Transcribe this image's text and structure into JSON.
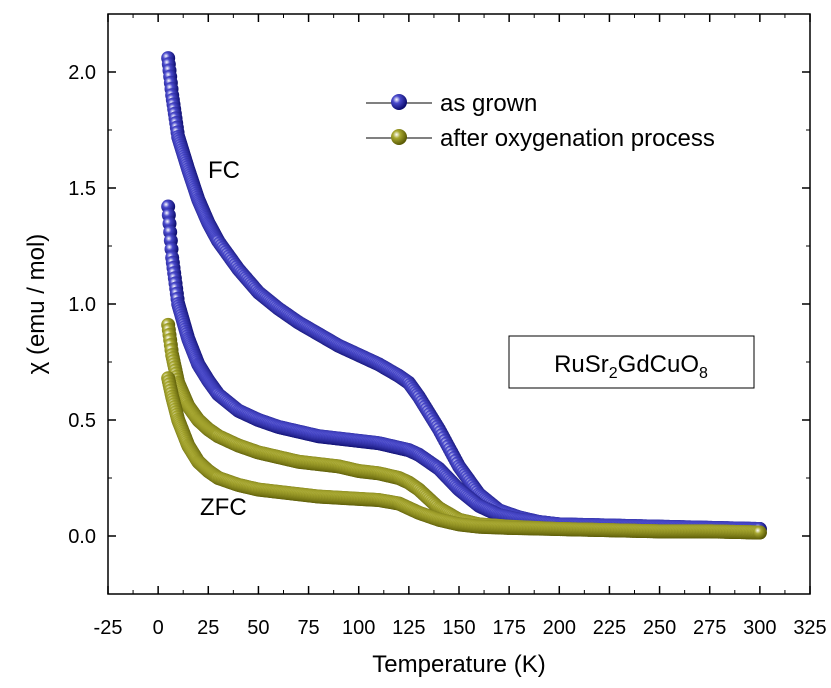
{
  "chart_data": {
    "type": "scatter",
    "title": "",
    "xlabel": "Temperature (K)",
    "ylabel": "χ (emu / mol)",
    "xlim": [
      -25,
      325
    ],
    "ylim": [
      -0.25,
      2.25
    ],
    "xticks": [
      "-25",
      "0",
      "25",
      "50",
      "75",
      "100",
      "125",
      "150",
      "175",
      "200",
      "225",
      "250",
      "275",
      "300",
      "325"
    ],
    "yticks": [
      "0.0",
      "0.5",
      "1.0",
      "1.5",
      "2.0"
    ],
    "legend_position": "top-right",
    "grid": false,
    "series": [
      {
        "name": "as grown",
        "color": "#1a1a9e",
        "curves": [
          {
            "label": "FC",
            "x": [
              5,
              7,
              10,
              15,
              20,
              25,
              30,
              40,
              50,
              60,
              70,
              80,
              90,
              100,
              110,
              120,
              125,
              130,
              140,
              150,
              160,
              170,
              180,
              190,
              200,
              225,
              250,
              275,
              300
            ],
            "y": [
              2.06,
              1.9,
              1.72,
              1.58,
              1.45,
              1.35,
              1.27,
              1.15,
              1.05,
              0.98,
              0.92,
              0.87,
              0.82,
              0.78,
              0.74,
              0.69,
              0.66,
              0.6,
              0.46,
              0.3,
              0.18,
              0.11,
              0.08,
              0.06,
              0.05,
              0.045,
              0.04,
              0.035,
              0.03
            ]
          },
          {
            "label": "ZFC",
            "x": [
              5,
              7,
              10,
              15,
              20,
              25,
              30,
              40,
              50,
              60,
              70,
              80,
              90,
              100,
              110,
              120,
              125,
              130,
              140,
              150,
              160,
              170,
              180,
              190,
              200,
              225,
              250,
              275,
              300
            ],
            "y": [
              1.42,
              1.2,
              1.0,
              0.85,
              0.74,
              0.67,
              0.61,
              0.54,
              0.5,
              0.47,
              0.45,
              0.43,
              0.42,
              0.41,
              0.4,
              0.38,
              0.37,
              0.35,
              0.29,
              0.2,
              0.13,
              0.09,
              0.07,
              0.06,
              0.05,
              0.045,
              0.04,
              0.035,
              0.03
            ]
          }
        ]
      },
      {
        "name": "after oxygenation process",
        "color": "#8a8a12",
        "curves": [
          {
            "label": "FC",
            "x": [
              5,
              7,
              10,
              15,
              20,
              25,
              30,
              40,
              50,
              60,
              70,
              80,
              90,
              100,
              110,
              120,
              125,
              130,
              140,
              150,
              160,
              175,
              200,
              225,
              250,
              275,
              300
            ],
            "y": [
              0.91,
              0.78,
              0.66,
              0.56,
              0.5,
              0.46,
              0.43,
              0.39,
              0.36,
              0.34,
              0.32,
              0.31,
              0.3,
              0.28,
              0.27,
              0.25,
              0.23,
              0.2,
              0.12,
              0.07,
              0.05,
              0.04,
              0.03,
              0.025,
              0.02,
              0.02,
              0.015
            ]
          },
          {
            "label": "ZFC",
            "x": [
              5,
              7,
              10,
              15,
              20,
              25,
              30,
              40,
              50,
              60,
              70,
              80,
              90,
              100,
              110,
              120,
              125,
              130,
              140,
              150,
              160,
              175,
              200,
              225,
              250,
              275,
              300
            ],
            "y": [
              0.68,
              0.6,
              0.5,
              0.39,
              0.32,
              0.28,
              0.25,
              0.22,
              0.2,
              0.19,
              0.18,
              0.17,
              0.165,
              0.16,
              0.155,
              0.14,
              0.12,
              0.1,
              0.07,
              0.05,
              0.04,
              0.035,
              0.03,
              0.025,
              0.02,
              0.02,
              0.015
            ]
          }
        ]
      }
    ],
    "annotations": {
      "fc": "FC",
      "zfc": "ZFC",
      "compound": "RuSr",
      "compound_sub1": "2",
      "compound_mid": "GdCuO",
      "compound_sub2": "8"
    }
  }
}
